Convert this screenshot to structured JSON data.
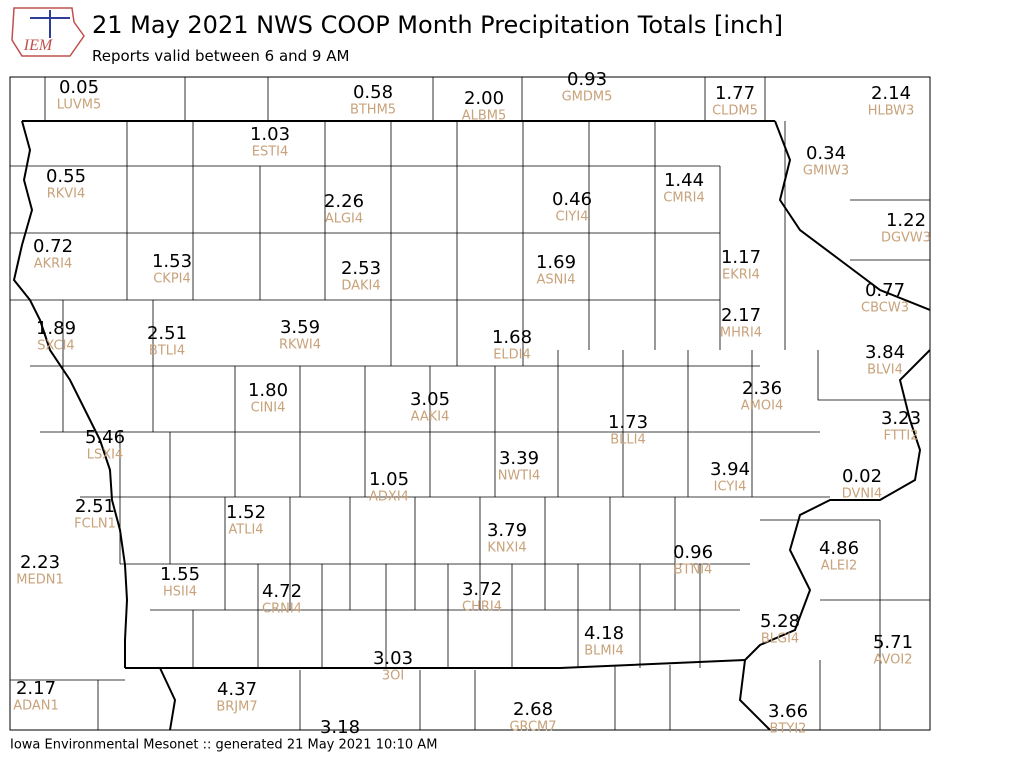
{
  "header": {
    "logo": "IEM",
    "title": "21 May 2021 NWS COOP Month Precipitation Totals [inch]",
    "subtitle": "Reports valid between 6 and 9 AM"
  },
  "footer": "Iowa Environmental Mesonet :: generated 21 May 2021 10:10 AM",
  "stations": [
    {
      "value": "0.05",
      "id": "LUVM5"
    },
    {
      "value": "0.58",
      "id": "BTHM5"
    },
    {
      "value": "2.00",
      "id": "ALBM5"
    },
    {
      "value": "0.93",
      "id": "GMDM5"
    },
    {
      "value": "1.77",
      "id": "CLDM5"
    },
    {
      "value": "2.14",
      "id": "HLBW3"
    },
    {
      "value": "1.03",
      "id": "ESTI4"
    },
    {
      "value": "0.55",
      "id": "RKVI4"
    },
    {
      "value": "2.26",
      "id": "ALGI4"
    },
    {
      "value": "0.46",
      "id": "CIYI4"
    },
    {
      "value": "1.44",
      "id": "CMRI4"
    },
    {
      "value": "0.34",
      "id": "GMIW3"
    },
    {
      "value": "1.22",
      "id": "DGVW3"
    },
    {
      "value": "0.72",
      "id": "AKRI4"
    },
    {
      "value": "1.53",
      "id": "CKPI4"
    },
    {
      "value": "2.53",
      "id": "DAKI4"
    },
    {
      "value": "1.69",
      "id": "ASNI4"
    },
    {
      "value": "1.17",
      "id": "EKRI4"
    },
    {
      "value": "0.77",
      "id": "CBCW3"
    },
    {
      "value": "1.89",
      "id": "SXCI4"
    },
    {
      "value": "2.51",
      "id": "BTLI4"
    },
    {
      "value": "3.59",
      "id": "RKWI4"
    },
    {
      "value": "1.68",
      "id": "ELDI4"
    },
    {
      "value": "2.17",
      "id": "MHRI4"
    },
    {
      "value": "3.84",
      "id": "BLVI4"
    },
    {
      "value": "1.80",
      "id": "CINI4"
    },
    {
      "value": "3.05",
      "id": "AAKI4"
    },
    {
      "value": "2.36",
      "id": "AMOI4"
    },
    {
      "value": "1.73",
      "id": "BLLI4"
    },
    {
      "value": "3.23",
      "id": "FTTI2"
    },
    {
      "value": "5.46",
      "id": "LSXI4"
    },
    {
      "value": "3.39",
      "id": "NWTI4"
    },
    {
      "value": "3.94",
      "id": "ICYI4"
    },
    {
      "value": "1.05",
      "id": "ADXI4"
    },
    {
      "value": "0.02",
      "id": "DVNI4"
    },
    {
      "value": "2.51",
      "id": "FCLN1"
    },
    {
      "value": "1.52",
      "id": "ATLI4"
    },
    {
      "value": "3.79",
      "id": "KNXI4"
    },
    {
      "value": "0.96",
      "id": "BTNI4"
    },
    {
      "value": "4.86",
      "id": "ALEI2"
    },
    {
      "value": "2.23",
      "id": "MEDN1"
    },
    {
      "value": "1.55",
      "id": "HSII4"
    },
    {
      "value": "4.72",
      "id": "CRNI4"
    },
    {
      "value": "3.72",
      "id": "CHRI4"
    },
    {
      "value": "4.18",
      "id": "BLMI4"
    },
    {
      "value": "5.28",
      "id": "BLGI4"
    },
    {
      "value": "5.71",
      "id": "AVOI2"
    },
    {
      "value": "3.03",
      "id": "3OI"
    },
    {
      "value": "2.17",
      "id": "ADAN1"
    },
    {
      "value": "4.37",
      "id": "BRJM7"
    },
    {
      "value": "2.68",
      "id": "GRCM7"
    },
    {
      "value": "3.66",
      "id": "BTYI2"
    },
    {
      "value": "3.18"
    }
  ]
}
